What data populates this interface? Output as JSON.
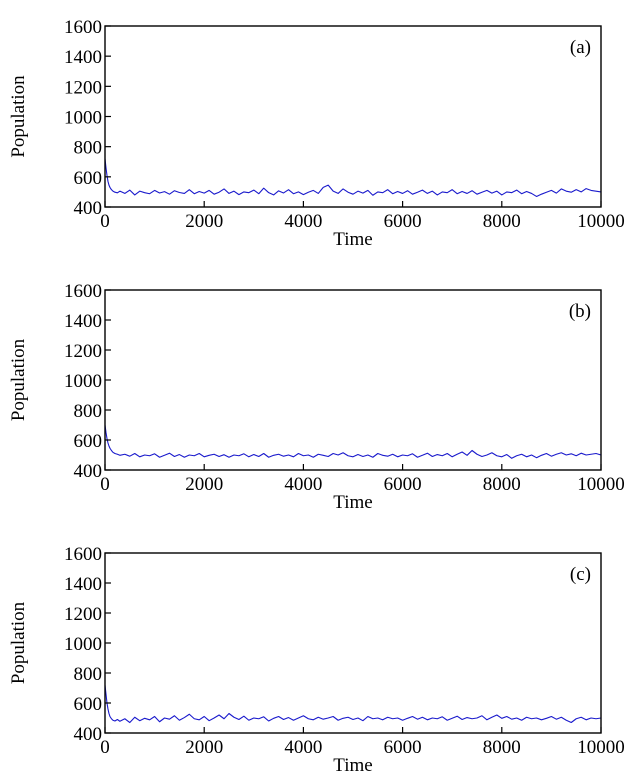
{
  "chart_data": [
    {
      "type": "line",
      "panel_label": "(a)",
      "xlabel": "Time",
      "ylabel": "Population",
      "xlim": [
        0,
        10000
      ],
      "ylim": [
        400,
        1600
      ],
      "xticks": [
        0,
        2000,
        4000,
        6000,
        8000,
        10000
      ],
      "yticks": [
        400,
        600,
        800,
        1000,
        1200,
        1400,
        1600
      ],
      "series": [
        {
          "color": "#1a1acc",
          "x": [
            0,
            20,
            40,
            60,
            80,
            100,
            130,
            160,
            200,
            250,
            300,
            400,
            500,
            600,
            700,
            800,
            900,
            1000,
            1100,
            1200,
            1300,
            1400,
            1500,
            1600,
            1700,
            1800,
            1900,
            2000,
            2100,
            2200,
            2300,
            2400,
            2500,
            2600,
            2700,
            2800,
            2900,
            3000,
            3100,
            3200,
            3300,
            3400,
            3500,
            3600,
            3700,
            3800,
            3900,
            4000,
            4100,
            4200,
            4300,
            4400,
            4500,
            4600,
            4700,
            4800,
            4900,
            5000,
            5100,
            5200,
            5300,
            5400,
            5500,
            5600,
            5700,
            5800,
            5900,
            6000,
            6100,
            6200,
            6300,
            6400,
            6500,
            6600,
            6700,
            6800,
            6900,
            7000,
            7100,
            7200,
            7300,
            7400,
            7500,
            7600,
            7700,
            7800,
            7900,
            8000,
            8100,
            8200,
            8300,
            8400,
            8500,
            8600,
            8700,
            8800,
            8900,
            9000,
            9100,
            9200,
            9300,
            9400,
            9500,
            9600,
            9700,
            9800,
            9900,
            10000
          ],
          "y": [
            720,
            660,
            610,
            570,
            545,
            530,
            515,
            505,
            498,
            494,
            505,
            490,
            512,
            480,
            505,
            495,
            488,
            510,
            493,
            502,
            485,
            508,
            496,
            490,
            515,
            488,
            503,
            492,
            510,
            485,
            498,
            520,
            490,
            505,
            482,
            500,
            495,
            512,
            488,
            525,
            495,
            480,
            507,
            493,
            515,
            488,
            500,
            482,
            498,
            510,
            490,
            530,
            545,
            505,
            490,
            520,
            498,
            485,
            505,
            492,
            510,
            478,
            500,
            495,
            515,
            488,
            503,
            490,
            508,
            485,
            498,
            512,
            490,
            505,
            480,
            500,
            495,
            515,
            488,
            503,
            490,
            508,
            485,
            498,
            510,
            492,
            505,
            480,
            500,
            495,
            512,
            488,
            503,
            490,
            470,
            485,
            498,
            510,
            492,
            520,
            505,
            498,
            515,
            500,
            522,
            510,
            505,
            500
          ]
        }
      ]
    },
    {
      "type": "line",
      "panel_label": "(b)",
      "xlabel": "Time",
      "ylabel": "Population",
      "xlim": [
        0,
        10000
      ],
      "ylim": [
        400,
        1600
      ],
      "xticks": [
        0,
        2000,
        4000,
        6000,
        8000,
        10000
      ],
      "yticks": [
        400,
        600,
        800,
        1000,
        1200,
        1400,
        1600
      ],
      "series": [
        {
          "color": "#1a1acc",
          "x": [
            0,
            20,
            40,
            60,
            80,
            100,
            130,
            160,
            200,
            250,
            300,
            400,
            500,
            600,
            700,
            800,
            900,
            1000,
            1100,
            1200,
            1300,
            1400,
            1500,
            1600,
            1700,
            1800,
            1900,
            2000,
            2100,
            2200,
            2300,
            2400,
            2500,
            2600,
            2700,
            2800,
            2900,
            3000,
            3100,
            3200,
            3300,
            3400,
            3500,
            3600,
            3700,
            3800,
            3900,
            4000,
            4100,
            4200,
            4300,
            4400,
            4500,
            4600,
            4700,
            4800,
            4900,
            5000,
            5100,
            5200,
            5300,
            5400,
            5500,
            5600,
            5700,
            5800,
            5900,
            6000,
            6100,
            6200,
            6300,
            6400,
            6500,
            6600,
            6700,
            6800,
            6900,
            7000,
            7100,
            7200,
            7300,
            7400,
            7500,
            7600,
            7700,
            7800,
            7900,
            8000,
            8100,
            8200,
            8300,
            8400,
            8500,
            8600,
            8700,
            8800,
            8900,
            9000,
            9100,
            9200,
            9300,
            9400,
            9500,
            9600,
            9700,
            9800,
            9900,
            10000
          ],
          "y": [
            700,
            650,
            610,
            580,
            560,
            545,
            530,
            518,
            510,
            505,
            498,
            505,
            492,
            510,
            488,
            500,
            495,
            508,
            485,
            498,
            512,
            490,
            503,
            485,
            500,
            495,
            510,
            488,
            498,
            505,
            490,
            502,
            485,
            500,
            495,
            508,
            488,
            503,
            490,
            510,
            485,
            498,
            505,
            492,
            500,
            488,
            510,
            495,
            500,
            485,
            505,
            498,
            490,
            510,
            500,
            515,
            495,
            488,
            503,
            490,
            500,
            485,
            510,
            498,
            492,
            505,
            488,
            500,
            495,
            508,
            485,
            498,
            512,
            490,
            503,
            495,
            510,
            488,
            505,
            520,
            498,
            530,
            505,
            490,
            500,
            515,
            495,
            488,
            503,
            478,
            495,
            505,
            488,
            500,
            482,
            498,
            510,
            492,
            505,
            515,
            500,
            508,
            495,
            512,
            500,
            505,
            510,
            500
          ]
        }
      ]
    },
    {
      "type": "line",
      "panel_label": "(c)",
      "xlabel": "Time",
      "ylabel": "Population",
      "xlim": [
        0,
        10000
      ],
      "ylim": [
        400,
        1600
      ],
      "xticks": [
        0,
        2000,
        4000,
        6000,
        8000,
        10000
      ],
      "yticks": [
        400,
        600,
        800,
        1000,
        1200,
        1400,
        1600
      ],
      "series": [
        {
          "color": "#1a1acc",
          "x": [
            0,
            20,
            40,
            60,
            80,
            100,
            130,
            160,
            200,
            250,
            300,
            400,
            500,
            600,
            700,
            800,
            900,
            1000,
            1100,
            1200,
            1300,
            1400,
            1500,
            1600,
            1700,
            1800,
            1900,
            2000,
            2100,
            2200,
            2300,
            2400,
            2500,
            2600,
            2700,
            2800,
            2900,
            3000,
            3100,
            3200,
            3300,
            3400,
            3500,
            3600,
            3700,
            3800,
            3900,
            4000,
            4100,
            4200,
            4300,
            4400,
            4500,
            4600,
            4700,
            4800,
            4900,
            5000,
            5100,
            5200,
            5300,
            5400,
            5500,
            5600,
            5700,
            5800,
            5900,
            6000,
            6100,
            6200,
            6300,
            6400,
            6500,
            6600,
            6700,
            6800,
            6900,
            7000,
            7100,
            7200,
            7300,
            7400,
            7500,
            7600,
            7700,
            7800,
            7900,
            8000,
            8100,
            8200,
            8300,
            8400,
            8500,
            8600,
            8700,
            8800,
            8900,
            9000,
            9100,
            9200,
            9300,
            9400,
            9500,
            9600,
            9700,
            9800,
            9900,
            10000
          ],
          "y": [
            720,
            660,
            600,
            560,
            530,
            510,
            495,
            485,
            480,
            490,
            478,
            495,
            470,
            505,
            482,
            498,
            488,
            510,
            475,
            500,
            492,
            515,
            485,
            503,
            525,
            495,
            488,
            510,
            482,
            500,
            520,
            495,
            530,
            505,
            490,
            512,
            485,
            500,
            495,
            508,
            480,
            498,
            510,
            490,
            503,
            485,
            500,
            515,
            495,
            488,
            505,
            492,
            500,
            510,
            485,
            498,
            505,
            490,
            500,
            482,
            510,
            495,
            500,
            488,
            505,
            495,
            500,
            485,
            498,
            510,
            492,
            505,
            488,
            500,
            495,
            508,
            485,
            498,
            512,
            490,
            503,
            495,
            500,
            515,
            488,
            505,
            520,
            498,
            510,
            492,
            500,
            485,
            505,
            495,
            500,
            488,
            498,
            510,
            492,
            505,
            485,
            470,
            495,
            505,
            488,
            500,
            495,
            500
          ]
        }
      ]
    }
  ]
}
